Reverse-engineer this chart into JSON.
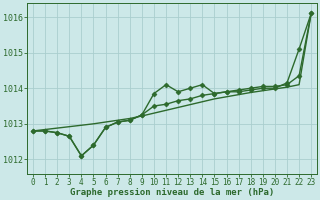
{
  "x": [
    0,
    1,
    2,
    3,
    4,
    5,
    6,
    7,
    8,
    9,
    10,
    11,
    12,
    13,
    14,
    15,
    16,
    17,
    18,
    19,
    20,
    21,
    22,
    23
  ],
  "line1_markers": [
    1012.8,
    1012.8,
    1012.75,
    1012.65,
    1012.1,
    1012.4,
    1012.9,
    1013.05,
    1013.1,
    1013.25,
    1013.85,
    1014.1,
    1013.9,
    1014.0,
    1014.1,
    1013.85,
    1013.9,
    1013.9,
    1013.95,
    1014.0,
    1014.0,
    1014.15,
    1015.1,
    1016.1
  ],
  "line2_markers": [
    1012.8,
    1012.8,
    1012.75,
    1012.65,
    1012.1,
    1012.4,
    1012.9,
    1013.05,
    1013.1,
    1013.25,
    1013.5,
    1013.55,
    1013.65,
    1013.7,
    1013.8,
    1013.85,
    1013.9,
    1013.95,
    1014.0,
    1014.05,
    1014.05,
    1014.1,
    1014.35,
    1016.1
  ],
  "line3_straight": [
    1012.8,
    1012.84,
    1012.88,
    1012.92,
    1012.96,
    1013.0,
    1013.05,
    1013.1,
    1013.15,
    1013.22,
    1013.3,
    1013.38,
    1013.46,
    1013.54,
    1013.62,
    1013.7,
    1013.76,
    1013.82,
    1013.88,
    1013.93,
    1013.98,
    1014.03,
    1014.1,
    1016.1
  ],
  "ylim": [
    1011.6,
    1016.4
  ],
  "yticks": [
    1012,
    1013,
    1014,
    1015,
    1016
  ],
  "xticks": [
    0,
    1,
    2,
    3,
    4,
    5,
    6,
    7,
    8,
    9,
    10,
    11,
    12,
    13,
    14,
    15,
    16,
    17,
    18,
    19,
    20,
    21,
    22,
    23
  ],
  "xlabel": "Graphe pression niveau de la mer (hPa)",
  "line_color": "#2d6a2d",
  "bg_color": "#cce8e8",
  "grid_color": "#aacece",
  "marker": "D",
  "marker_size": 2.5,
  "line_width": 1.0,
  "tick_fontsize": 5.5,
  "xlabel_fontsize": 6.5
}
